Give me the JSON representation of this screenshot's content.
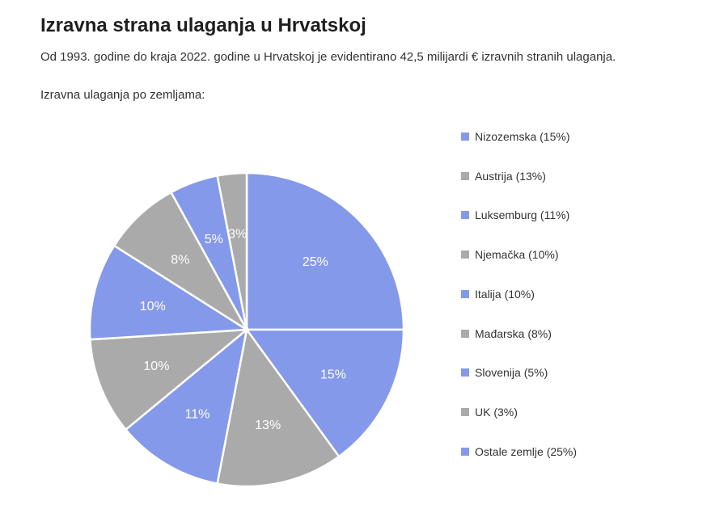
{
  "header": {
    "title": "Izravna strana ulaganja u Hrvatskoj",
    "subtitle": "Od 1993. godine do kraja 2022. godine u Hrvatskoj je evidentirano 42,5 milijardi € izravnih stranih ulaganja.",
    "section_label": "Izravna ulaganja po zemljama:"
  },
  "colors": {
    "blue": "#8599ea",
    "gray": "#aaaaaa",
    "slice_border": "#ffffff"
  },
  "chart_data": {
    "type": "pie",
    "start_angle": "12 o'clock, clockwise",
    "slices": [
      {
        "label": "Ostale zemlje",
        "value": 25,
        "display": "25%",
        "color": "#8599ea"
      },
      {
        "label": "Nizozemska",
        "value": 15,
        "display": "15%",
        "color": "#8599ea"
      },
      {
        "label": "Austrija",
        "value": 13,
        "display": "13%",
        "color": "#aaaaaa"
      },
      {
        "label": "Luksemburg",
        "value": 11,
        "display": "11%",
        "color": "#8599ea"
      },
      {
        "label": "Njemačka",
        "value": 10,
        "display": "10%",
        "color": "#aaaaaa"
      },
      {
        "label": "Italija",
        "value": 10,
        "display": "10%",
        "color": "#8599ea"
      },
      {
        "label": "Mađarska",
        "value": 8,
        "display": "8%",
        "color": "#aaaaaa"
      },
      {
        "label": "Slovenija",
        "value": 5,
        "display": "5%",
        "color": "#8599ea"
      },
      {
        "label": "UK",
        "value": 3,
        "display": "3%",
        "color": "#aaaaaa"
      }
    ],
    "legend_position": "right",
    "legend": [
      {
        "label": "Nizozemska (15%)",
        "color": "#8599ea"
      },
      {
        "label": "Austrija (13%)",
        "color": "#aaaaaa"
      },
      {
        "label": "Luksemburg (11%)",
        "color": "#8599ea"
      },
      {
        "label": "Njemačka (10%)",
        "color": "#aaaaaa"
      },
      {
        "label": "Italija (10%)",
        "color": "#8599ea"
      },
      {
        "label": "Mađarska (8%)",
        "color": "#aaaaaa"
      },
      {
        "label": "Slovenija (5%)",
        "color": "#8599ea"
      },
      {
        "label": "UK (3%)",
        "color": "#aaaaaa"
      },
      {
        "label": "Ostale zemlje (25%)",
        "color": "#8599ea"
      }
    ]
  }
}
